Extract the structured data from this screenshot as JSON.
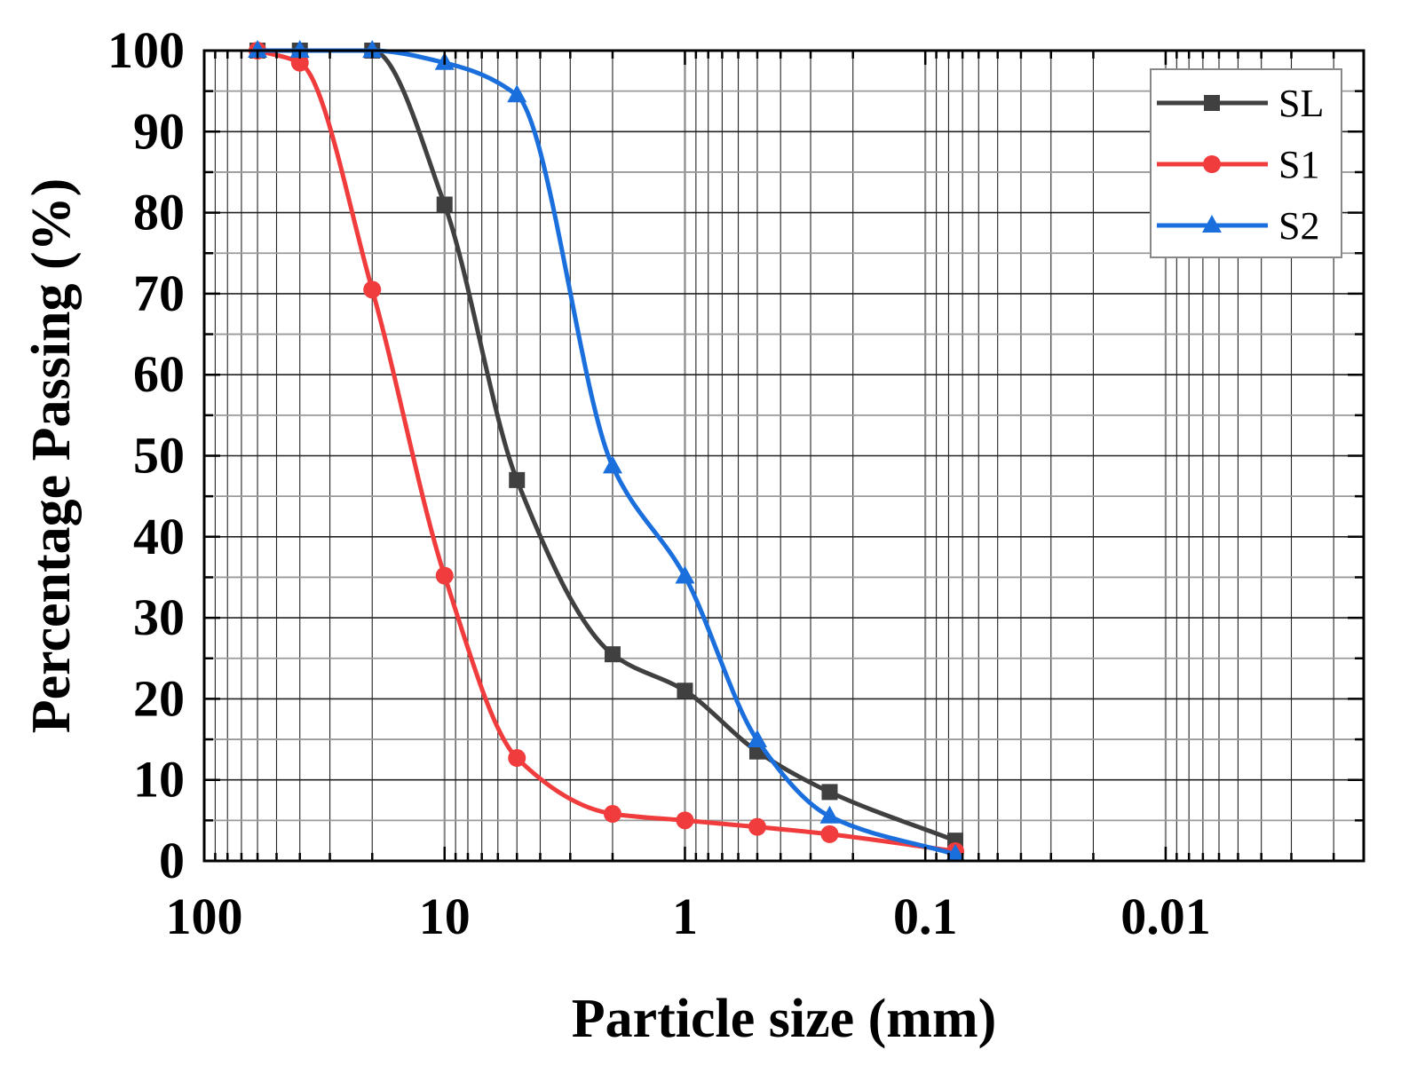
{
  "chart_data": {
    "type": "line",
    "title": "",
    "xlabel": "Particle size (mm)",
    "ylabel": "Percentage Passing (%)",
    "x_scale": "log",
    "x_reversed": true,
    "xlim": [
      100,
      0.0015
    ],
    "ylim": [
      0,
      100
    ],
    "x_ticks": [
      100,
      10,
      1,
      0.1,
      0.01
    ],
    "x_tick_labels": [
      "100",
      "10",
      "1",
      "0.1",
      "0.01"
    ],
    "y_ticks": [
      0,
      10,
      20,
      30,
      40,
      50,
      60,
      70,
      80,
      90,
      100
    ],
    "y_tick_labels": [
      "0",
      "10",
      "20",
      "30",
      "40",
      "50",
      "60",
      "70",
      "80",
      "90",
      "100"
    ],
    "grid": true,
    "legend_position": "top-right",
    "series": [
      {
        "name": "SL",
        "color": "#404040",
        "marker": "square",
        "x": [
          60,
          40,
          20,
          10,
          5,
          2,
          1,
          0.5,
          0.25,
          0.075
        ],
        "y": [
          100,
          100,
          100,
          81,
          47,
          25.5,
          21,
          13.5,
          8.5,
          2.5
        ]
      },
      {
        "name": "S1",
        "color": "#f03c3c",
        "marker": "circle",
        "x": [
          60,
          40,
          20,
          10,
          5,
          2,
          1,
          0.5,
          0.25,
          0.075
        ],
        "y": [
          100,
          98.5,
          70.5,
          35.2,
          12.7,
          5.8,
          5,
          4.2,
          3.3,
          1.2
        ]
      },
      {
        "name": "S2",
        "color": "#1a6fdc",
        "marker": "triangle",
        "x": [
          60,
          40,
          20,
          10,
          5,
          2,
          1,
          0.5,
          0.25,
          0.075
        ],
        "y": [
          100,
          100,
          100,
          98.5,
          94.5,
          48.7,
          35.1,
          14.9,
          5.5,
          0.8
        ]
      }
    ]
  }
}
